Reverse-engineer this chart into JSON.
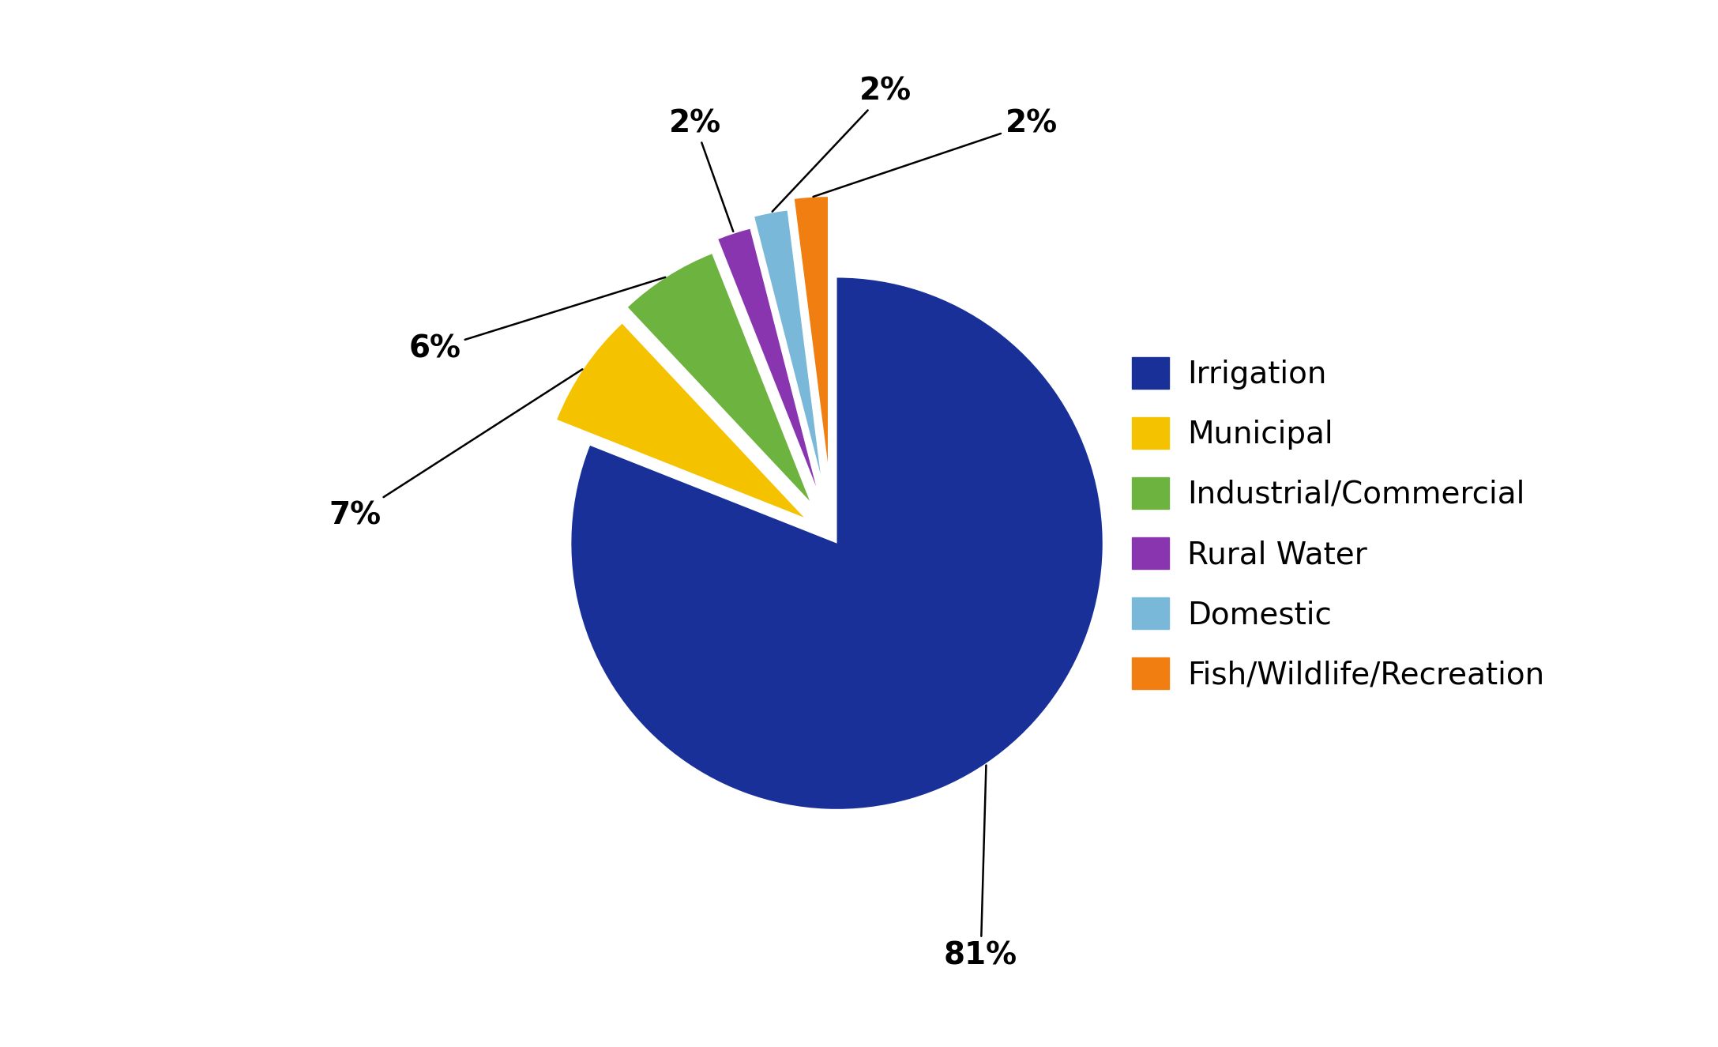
{
  "labels": [
    "Irrigation",
    "Municipal",
    "Industrial/Commercial",
    "Rural Water",
    "Domestic",
    "Fish/Wildlife/Recreation"
  ],
  "values": [
    81,
    7,
    6,
    2,
    2,
    2
  ],
  "colors": [
    "#1a3099",
    "#f5c200",
    "#6db33f",
    "#8a35b0",
    "#7ab8d9",
    "#f07e10"
  ],
  "explode": [
    0.03,
    0.13,
    0.16,
    0.2,
    0.24,
    0.28
  ],
  "pct_labels": [
    "81%",
    "7%",
    "6%",
    "2%",
    "2%",
    "2%"
  ],
  "legend_labels": [
    "Irrigation",
    "Municipal",
    "Industrial/Commercial",
    "Rural Water",
    "Domestic",
    "Fish/Wildlife/Recreation"
  ],
  "background_color": "#ffffff",
  "startangle": 90,
  "label_fontsize": 28,
  "legend_fontsize": 28
}
